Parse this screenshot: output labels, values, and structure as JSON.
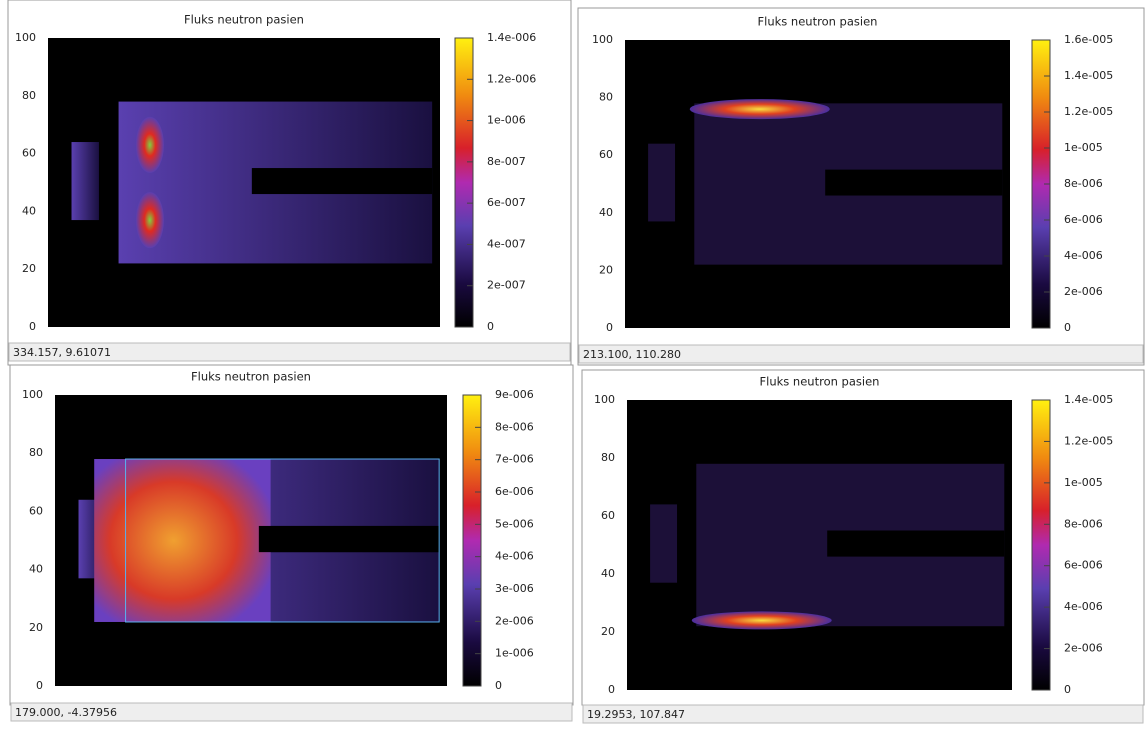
{
  "panels": [
    {
      "title": "Fluks neutron pasien",
      "y_ticks": [
        0,
        20,
        40,
        60,
        80,
        100
      ],
      "colorbar_ticks": [
        "0",
        "2e-007",
        "4e-007",
        "6e-007",
        "8e-007",
        "1e-006",
        "1.2e-006",
        "1.4e-006"
      ],
      "status": "334.157, 9.61071"
    },
    {
      "title": "Fluks neutron pasien",
      "y_ticks": [
        0,
        20,
        40,
        60,
        80,
        100
      ],
      "colorbar_ticks": [
        "0",
        "2e-006",
        "4e-006",
        "6e-006",
        "8e-006",
        "1e-005",
        "1.2e-005",
        "1.4e-005",
        "1.6e-005"
      ],
      "status": "213.100, 110.280"
    },
    {
      "title": "Fluks neutron pasien",
      "y_ticks": [
        0,
        20,
        40,
        60,
        80,
        100
      ],
      "colorbar_ticks": [
        "0",
        "1e-006",
        "2e-006",
        "3e-006",
        "4e-006",
        "5e-006",
        "6e-006",
        "7e-006",
        "8e-006",
        "9e-006"
      ],
      "status": "179.000, -4.37956"
    },
    {
      "title": "Fluks neutron pasien",
      "y_ticks": [
        0,
        20,
        40,
        60,
        80,
        100
      ],
      "colorbar_ticks": [
        "0",
        "2e-006",
        "4e-006",
        "6e-006",
        "8e-006",
        "1e-005",
        "1.2e-005",
        "1.4e-005"
      ],
      "status": "19.2953, 107.847"
    }
  ]
}
